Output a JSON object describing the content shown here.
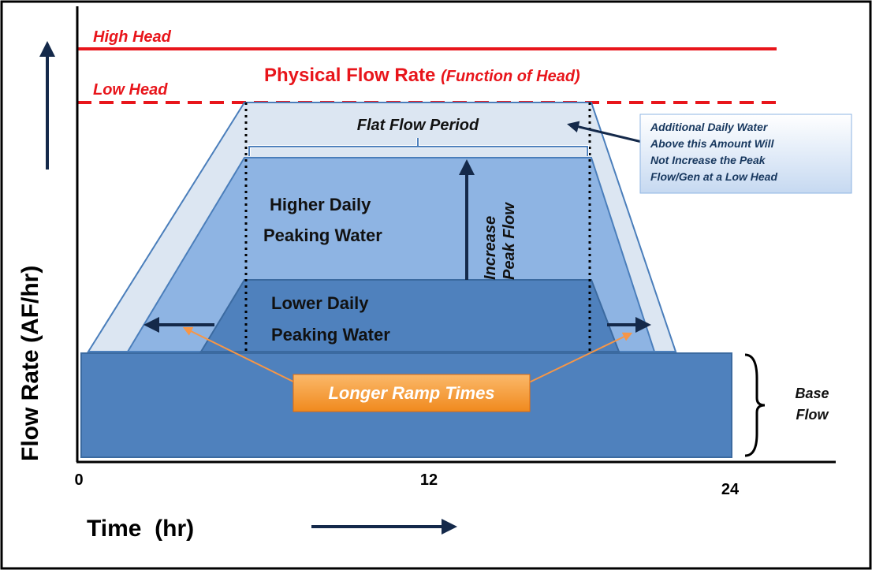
{
  "lines": {
    "high_head": "High Head",
    "low_head": "Low Head"
  },
  "physical_flow": {
    "title": "Physical Flow Rate",
    "note": "(Function of Head)"
  },
  "flat_flow": "Flat Flow Period",
  "callout": [
    "Additional Daily Water",
    "Above this Amount Will",
    "Not Increase the Peak",
    "Flow/Gen at a Low Head"
  ],
  "higher": [
    "Higher Daily",
    "Peaking Water"
  ],
  "lower": [
    "Lower Daily",
    "Peaking Water"
  ],
  "increase": [
    "Increase",
    "Peak Flow"
  ],
  "ramp": "Longer Ramp Times",
  "base": [
    "Base",
    "Flow"
  ],
  "y_axis": {
    "label": "Flow Rate (AF/hr)"
  },
  "x_axis": {
    "label": "Time  (hr)",
    "ticks": [
      0,
      12,
      24
    ]
  }
}
